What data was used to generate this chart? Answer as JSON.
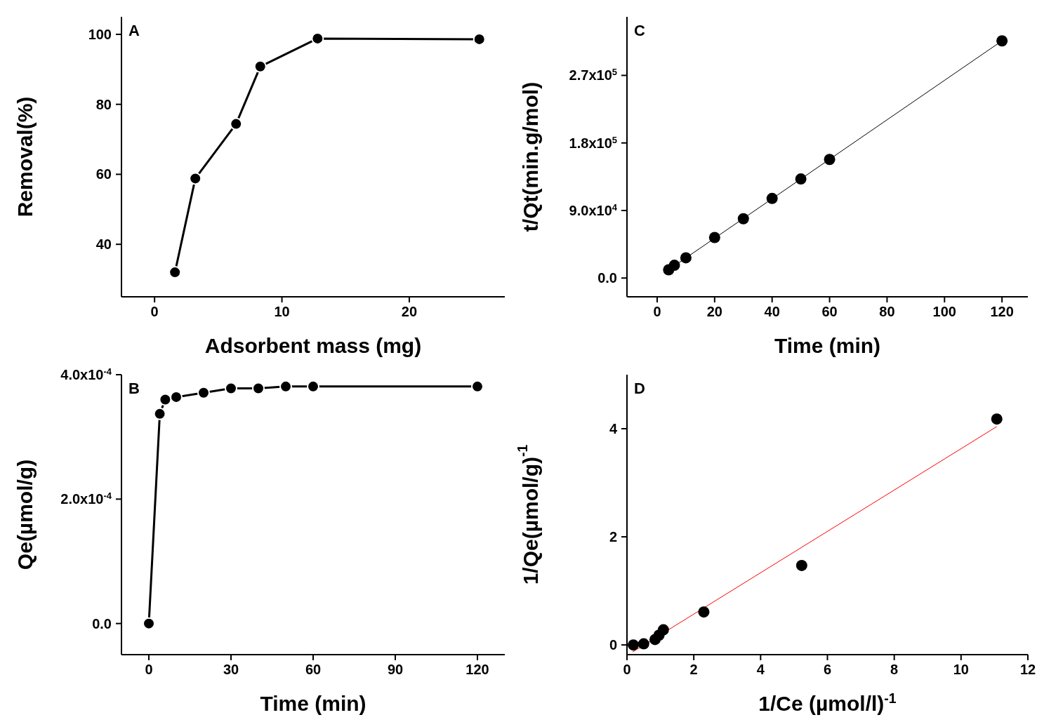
{
  "chart_data": [
    {
      "type": "line",
      "xlabel": "Adsorbent mass (mg)",
      "ylabel": "Removal(%)",
      "annotations": [
        "A"
      ],
      "marker": "circle",
      "series": [
        {
          "x": [
            1.6,
            3.2,
            6.4,
            8.3,
            12.8,
            25.5
          ],
          "values": [
            32,
            58.8,
            74.4,
            90.8,
            98.8,
            98.6
          ],
          "color": "#000000"
        }
      ],
      "xlim": [
        -2.6,
        27.5
      ],
      "ylim": [
        25,
        105
      ],
      "xticks": [
        0,
        10,
        20
      ],
      "yticks": [
        40,
        60,
        80,
        100
      ]
    },
    {
      "type": "scatter",
      "xlabel": "Time (min)",
      "ylabel": "t/Qt(min.g/mol)",
      "annotations": [
        "C"
      ],
      "marker": "circle",
      "series": [
        {
          "x": [
            4,
            6,
            10,
            20,
            30,
            40,
            50,
            60,
            120
          ],
          "values": [
            11000,
            17000,
            27000,
            54000,
            79000,
            106000,
            132000,
            158000,
            316000
          ],
          "color": "#000000"
        },
        {
          "type": "line",
          "marker": "none",
          "x": [
            4,
            120
          ],
          "values": [
            11000,
            316000
          ],
          "color": "#000000"
        }
      ],
      "xlim": [
        -10.5,
        129
      ],
      "ylim": [
        -25000,
        348000
      ],
      "xticks": [
        0,
        20,
        40,
        60,
        80,
        100,
        120
      ],
      "yticks": [
        {
          "value": 0,
          "label": "0.0"
        },
        {
          "value": 90000,
          "label": "9.0x10$^{4}$"
        },
        {
          "value": 180000,
          "label": "1.8x10$^{5}$"
        },
        {
          "value": 270000,
          "label": "2.7x10$^{5}$"
        }
      ]
    },
    {
      "type": "line",
      "xlabel": "Time (min)",
      "ylabel": "Qe(µmol/g)",
      "annotations": [
        "B"
      ],
      "marker": "circle",
      "series": [
        {
          "x": [
            0,
            4,
            6,
            10,
            20,
            30,
            40,
            50,
            60,
            120
          ],
          "values": [
            0,
            0.000337,
            0.00036,
            0.000364,
            0.000371,
            0.000378,
            0.000378,
            0.000381,
            0.000381,
            0.000381
          ],
          "color": "#000000"
        }
      ],
      "xlim": [
        -10,
        130
      ],
      "ylim": [
        -5e-05,
        0.0004
      ],
      "xticks": [
        0,
        30,
        60,
        90,
        120
      ],
      "yticks": [
        {
          "value": 0,
          "label": "0.0"
        },
        {
          "value": 0.0002,
          "label": "2.0x10$^{-4}$"
        },
        {
          "value": 0.0004,
          "label": "4.0x10$^{-4}$"
        }
      ]
    },
    {
      "type": "scatter",
      "xlabel": "1/Ce (µmol/l)$^{-1}$",
      "ylabel": "1/Qe(µmol/g)$^{-1}$",
      "annotations": [
        "D"
      ],
      "marker": "circle",
      "series": [
        {
          "x": [
            0.19,
            0.5,
            0.84,
            0.96,
            1.09,
            2.3,
            5.23,
            11.07
          ],
          "values": [
            0,
            0.02,
            0.1,
            0.18,
            0.28,
            0.61,
            1.47,
            4.18
          ],
          "color": "#000000"
        },
        {
          "type": "line",
          "marker": "none",
          "x": [
            0.17,
            11.07
          ],
          "values": [
            -0.13,
            4.04
          ],
          "color": "#ff0000"
        }
      ],
      "xlim": [
        0,
        12
      ],
      "ylim": [
        -0.18,
        5
      ],
      "xticks": [
        0,
        2,
        4,
        6,
        8,
        10,
        12
      ],
      "yticks": [
        0,
        2,
        4
      ]
    }
  ]
}
